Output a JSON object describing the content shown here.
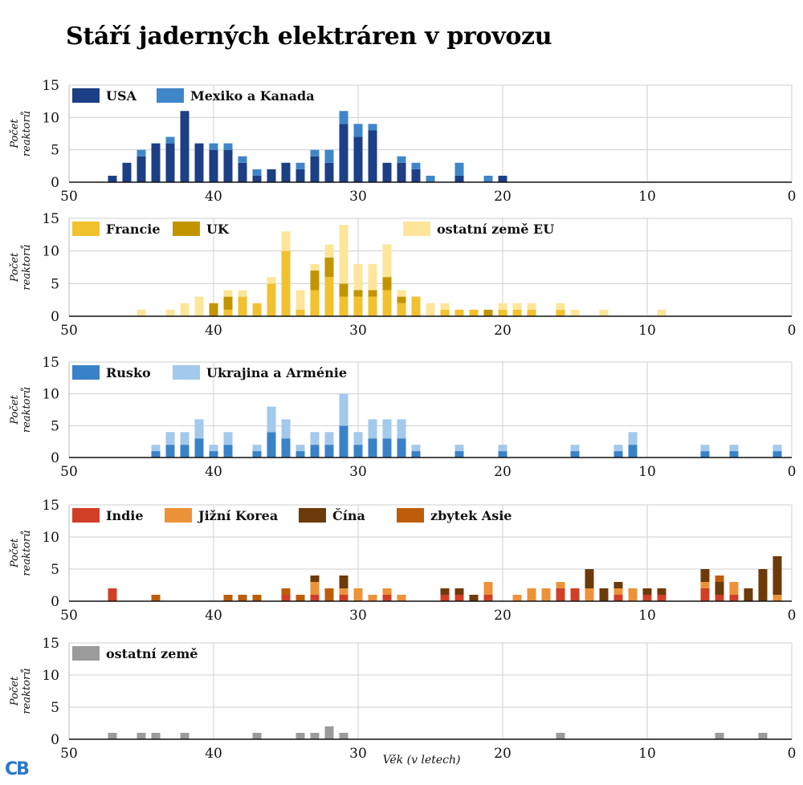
{
  "title": "Stáří jaderných elektráren v provozu",
  "logo": "CB",
  "chart_data": {
    "type": "bar",
    "stacked": true,
    "xlabel": "Věk (v letech)",
    "ylabel": [
      "Počet",
      "reaktorů"
    ],
    "xlim": [
      50,
      0
    ],
    "ylim": [
      0,
      15
    ],
    "xticks": [
      "50",
      "40",
      "30",
      "20",
      "10",
      "0"
    ],
    "yticks": [
      "0",
      "5",
      "10",
      "15"
    ],
    "grid": true,
    "legend_position": "top-left",
    "panels": [
      {
        "id": "americas",
        "series": [
          {
            "name": "USA",
            "color": "#1c3f85",
            "data": [
              [
                47,
                1
              ],
              [
                46,
                3
              ],
              [
                45,
                4
              ],
              [
                44,
                6
              ],
              [
                43,
                6
              ],
              [
                42,
                11
              ],
              [
                41,
                6
              ],
              [
                40,
                5
              ],
              [
                39,
                5
              ],
              [
                38,
                3
              ],
              [
                37,
                1
              ],
              [
                36,
                2
              ],
              [
                35,
                3
              ],
              [
                34,
                2
              ],
              [
                33,
                4
              ],
              [
                32,
                3
              ],
              [
                31,
                9
              ],
              [
                30,
                7
              ],
              [
                29,
                8
              ],
              [
                28,
                3
              ],
              [
                27,
                3
              ],
              [
                26,
                2
              ],
              [
                23,
                1
              ],
              [
                20,
                1
              ]
            ]
          },
          {
            "name": "Mexiko a Kanada",
            "color": "#3f86c8",
            "data": [
              [
                45,
                1
              ],
              [
                43,
                1
              ],
              [
                40,
                1
              ],
              [
                39,
                1
              ],
              [
                38,
                1
              ],
              [
                37,
                1
              ],
              [
                34,
                1
              ],
              [
                33,
                1
              ],
              [
                32,
                2
              ],
              [
                31,
                2
              ],
              [
                30,
                2
              ],
              [
                29,
                1
              ],
              [
                27,
                1
              ],
              [
                26,
                1
              ],
              [
                25,
                1
              ],
              [
                23,
                2
              ],
              [
                21,
                1
              ]
            ]
          }
        ]
      },
      {
        "id": "western-europe",
        "series": [
          {
            "name": "Francie",
            "color": "#f2c12e",
            "data": [
              [
                39,
                1
              ],
              [
                38,
                3
              ],
              [
                37,
                2
              ],
              [
                36,
                5
              ],
              [
                35,
                10
              ],
              [
                34,
                1
              ],
              [
                33,
                4
              ],
              [
                32,
                6
              ],
              [
                31,
                3
              ],
              [
                30,
                3
              ],
              [
                29,
                3
              ],
              [
                28,
                4
              ],
              [
                27,
                2
              ],
              [
                26,
                3
              ],
              [
                24,
                1
              ],
              [
                23,
                1
              ],
              [
                22,
                1
              ],
              [
                20,
                1
              ],
              [
                19,
                1
              ],
              [
                18,
                1
              ],
              [
                16,
                1
              ]
            ]
          },
          {
            "name": "UK",
            "color": "#c29500",
            "data": [
              [
                40,
                2
              ],
              [
                39,
                2
              ],
              [
                33,
                3
              ],
              [
                32,
                3
              ],
              [
                31,
                2
              ],
              [
                30,
                1
              ],
              [
                29,
                1
              ],
              [
                28,
                2
              ],
              [
                27,
                1
              ],
              [
                21,
                1
              ]
            ]
          },
          {
            "name": "ostatní země EU",
            "color": "#fde59a",
            "data": [
              [
                45,
                1
              ],
              [
                43,
                1
              ],
              [
                42,
                2
              ],
              [
                41,
                3
              ],
              [
                39,
                1
              ],
              [
                38,
                1
              ],
              [
                36,
                1
              ],
              [
                35,
                3
              ],
              [
                34,
                3
              ],
              [
                33,
                1
              ],
              [
                32,
                2
              ],
              [
                31,
                9
              ],
              [
                30,
                4
              ],
              [
                29,
                4
              ],
              [
                28,
                5
              ],
              [
                27,
                1
              ],
              [
                25,
                2
              ],
              [
                24,
                1
              ],
              [
                20,
                1
              ],
              [
                19,
                1
              ],
              [
                18,
                1
              ],
              [
                16,
                1
              ],
              [
                15,
                1
              ],
              [
                13,
                1
              ],
              [
                9,
                1
              ]
            ]
          }
        ]
      },
      {
        "id": "eastern-europe",
        "series": [
          {
            "name": "Rusko",
            "color": "#3a82c7",
            "data": [
              [
                44,
                1
              ],
              [
                43,
                2
              ],
              [
                42,
                2
              ],
              [
                41,
                3
              ],
              [
                40,
                1
              ],
              [
                39,
                2
              ],
              [
                37,
                1
              ],
              [
                36,
                4
              ],
              [
                35,
                3
              ],
              [
                34,
                1
              ],
              [
                33,
                2
              ],
              [
                32,
                2
              ],
              [
                31,
                5
              ],
              [
                30,
                2
              ],
              [
                29,
                3
              ],
              [
                28,
                3
              ],
              [
                27,
                3
              ],
              [
                26,
                1
              ],
              [
                23,
                1
              ],
              [
                20,
                1
              ],
              [
                15,
                1
              ],
              [
                12,
                1
              ],
              [
                11,
                2
              ],
              [
                6,
                1
              ],
              [
                4,
                1
              ],
              [
                1,
                1
              ]
            ]
          },
          {
            "name": "Ukrajina a Arménie",
            "color": "#a3c9ec",
            "data": [
              [
                44,
                1
              ],
              [
                43,
                2
              ],
              [
                42,
                2
              ],
              [
                41,
                3
              ],
              [
                40,
                1
              ],
              [
                39,
                2
              ],
              [
                37,
                1
              ],
              [
                36,
                4
              ],
              [
                35,
                3
              ],
              [
                34,
                1
              ],
              [
                33,
                2
              ],
              [
                32,
                2
              ],
              [
                31,
                5
              ],
              [
                30,
                2
              ],
              [
                29,
                3
              ],
              [
                28,
                3
              ],
              [
                27,
                3
              ],
              [
                26,
                1
              ],
              [
                23,
                1
              ],
              [
                20,
                1
              ],
              [
                15,
                1
              ],
              [
                12,
                1
              ],
              [
                11,
                2
              ],
              [
                6,
                1
              ],
              [
                4,
                1
              ],
              [
                1,
                1
              ]
            ]
          }
        ]
      },
      {
        "id": "asia",
        "series": [
          {
            "name": "Indie",
            "color": "#d13f27",
            "data": [
              [
                47,
                2
              ],
              [
                35,
                1
              ],
              [
                33,
                1
              ],
              [
                31,
                1
              ],
              [
                28,
                1
              ],
              [
                24,
                1
              ],
              [
                23,
                1
              ],
              [
                21,
                1
              ],
              [
                16,
                2
              ],
              [
                15,
                2
              ],
              [
                12,
                1
              ],
              [
                10,
                1
              ],
              [
                9,
                1
              ],
              [
                6,
                2
              ],
              [
                5,
                1
              ],
              [
                4,
                1
              ]
            ]
          },
          {
            "name": "Jižní Korea",
            "color": "#ec9238",
            "data": [
              [
                33,
                2
              ],
              [
                31,
                1
              ],
              [
                30,
                2
              ],
              [
                29,
                1
              ],
              [
                28,
                1
              ],
              [
                27,
                1
              ],
              [
                21,
                2
              ],
              [
                19,
                1
              ],
              [
                18,
                2
              ],
              [
                17,
                2
              ],
              [
                16,
                1
              ],
              [
                14,
                2
              ],
              [
                12,
                1
              ],
              [
                11,
                2
              ],
              [
                6,
                1
              ],
              [
                4,
                2
              ],
              [
                1,
                1
              ]
            ]
          },
          {
            "name": "Čína",
            "color": "#6d3a09",
            "data": [
              [
                33,
                1
              ],
              [
                31,
                2
              ],
              [
                24,
                1
              ],
              [
                23,
                1
              ],
              [
                22,
                1
              ],
              [
                14,
                3
              ],
              [
                13,
                2
              ],
              [
                12,
                1
              ],
              [
                10,
                1
              ],
              [
                9,
                1
              ],
              [
                6,
                2
              ],
              [
                5,
                2
              ],
              [
                3,
                2
              ],
              [
                2,
                5
              ],
              [
                1,
                6
              ]
            ]
          },
          {
            "name": "zbytek Asie",
            "color": "#bd5d0a",
            "data": [
              [
                44,
                1
              ],
              [
                39,
                1
              ],
              [
                38,
                1
              ],
              [
                37,
                1
              ],
              [
                35,
                1
              ],
              [
                34,
                1
              ],
              [
                32,
                2
              ],
              [
                5,
                1
              ]
            ]
          }
        ]
      },
      {
        "id": "other",
        "series": [
          {
            "name": "ostatní země",
            "color": "#9b9b9b",
            "data": [
              [
                47,
                1
              ],
              [
                45,
                1
              ],
              [
                44,
                1
              ],
              [
                42,
                1
              ],
              [
                37,
                1
              ],
              [
                34,
                1
              ],
              [
                33,
                1
              ],
              [
                32,
                2
              ],
              [
                31,
                1
              ],
              [
                16,
                1
              ],
              [
                5,
                1
              ],
              [
                2,
                1
              ]
            ]
          }
        ]
      }
    ]
  }
}
